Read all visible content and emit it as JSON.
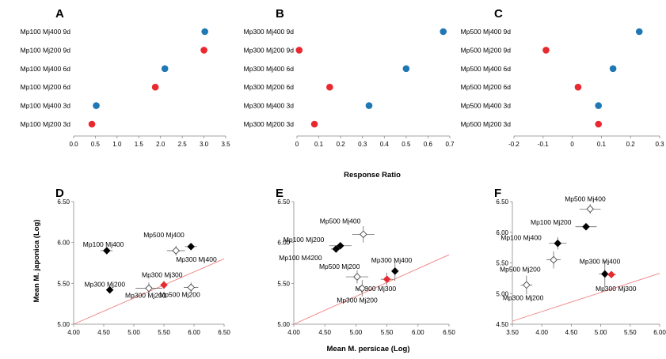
{
  "colors": {
    "red": "#e8292f",
    "blue": "#1f77b4",
    "line": "#f08080",
    "axis": "#888888"
  },
  "labels": {
    "top_x_title": "Response Ratio",
    "bottom_y_title": "Mean M. japonica (Log)",
    "bottom_x_title": "Mean M. persicae (Log)"
  },
  "chart_data": [
    {
      "panel": "A",
      "type": "scatter",
      "categories": [
        "Mp100 Mj400 9d",
        "Mp100 Mj200 9d",
        "Mp100 Mj400 6d",
        "Mp100 Mj200 6d",
        "Mp100 Mj400 3d",
        "Mp100 Mj200 3d"
      ],
      "values": [
        3.02,
        3.0,
        2.1,
        1.88,
        0.52,
        0.42
      ],
      "point_colors": [
        "blue",
        "red",
        "blue",
        "red",
        "blue",
        "red"
      ],
      "xlim": [
        0,
        3.5
      ],
      "xticks": [
        "0.0",
        "0.5",
        "1.0",
        "1.5",
        "2.0",
        "2.5",
        "3.0",
        "3.5"
      ]
    },
    {
      "panel": "B",
      "type": "scatter",
      "categories": [
        "Mp300 Mj400 9d",
        "Mp300 Mj200 9d",
        "Mp300 Mj400 6d",
        "Mp300 Mj200 6d",
        "Mp300 Mj400 3d",
        "Mp300 Mj200 3d"
      ],
      "values": [
        0.67,
        0.01,
        0.5,
        0.15,
        0.33,
        0.08
      ],
      "point_colors": [
        "blue",
        "red",
        "blue",
        "red",
        "blue",
        "red"
      ],
      "xlim": [
        0,
        0.7
      ],
      "xticks": [
        "0",
        "0.1",
        "0.2",
        "0.3",
        "0.4",
        "0.5",
        "0.6",
        "0.7"
      ]
    },
    {
      "panel": "C",
      "type": "scatter",
      "categories": [
        "Mp500 Mj400 9d",
        "Mp500 Mj200 9d",
        "Mp500 Mj400 6d",
        "Mp500 Mj200 6d",
        "Mp500 Mj400 3d",
        "Mp500 Mj200 3d"
      ],
      "values": [
        0.23,
        -0.09,
        0.14,
        0.02,
        0.09,
        0.09
      ],
      "point_colors": [
        "blue",
        "red",
        "blue",
        "red",
        "blue",
        "red"
      ],
      "xlim": [
        -0.2,
        0.3
      ],
      "xticks": [
        "-0.2",
        "-0.1",
        "0",
        "0.1",
        "0.2",
        "0.3"
      ]
    },
    {
      "panel": "D",
      "type": "scatter",
      "xlim": [
        4.0,
        6.5
      ],
      "ylim": [
        5.0,
        6.5
      ],
      "xticks": [
        "4.00",
        "4.50",
        "5.00",
        "5.50",
        "6.00",
        "6.50"
      ],
      "yticks": [
        "5.00",
        "5.50",
        "6.00",
        "6.50"
      ],
      "line": [
        [
          4.0,
          5.0
        ],
        [
          6.5,
          5.8
        ]
      ],
      "points": [
        {
          "label": "Mp100 Mj400",
          "x": 4.55,
          "y": 5.9,
          "xerr": 0.1,
          "yerr": 0.02,
          "style": "filled"
        },
        {
          "label": "Mp500 Mj400",
          "x": 5.95,
          "y": 5.95,
          "xerr": 0.1,
          "yerr": 0.03,
          "style": "filled"
        },
        {
          "label": "Mp300 Mj400",
          "x": 5.7,
          "y": 5.9,
          "xerr": 0.15,
          "yerr": 0.06,
          "style": "open"
        },
        {
          "label": "Mp300 Mj300",
          "x": 5.5,
          "y": 5.48,
          "xerr": 0.06,
          "yerr": 0.05,
          "style": "red"
        },
        {
          "label": "Mp300 Mj200",
          "x": 4.6,
          "y": 5.42,
          "xerr": 0.06,
          "yerr": 0.02,
          "style": "filled"
        },
        {
          "label": "Mp300 Mj200",
          "x": 5.25,
          "y": 5.44,
          "xerr": 0.22,
          "yerr": 0.07,
          "style": "open"
        },
        {
          "label": "Mp500 Mj200",
          "x": 5.95,
          "y": 5.45,
          "xerr": 0.12,
          "yerr": 0.06,
          "style": "open"
        }
      ]
    },
    {
      "panel": "E",
      "type": "scatter",
      "xlim": [
        4.0,
        6.5
      ],
      "ylim": [
        5.0,
        6.5
      ],
      "xticks": [
        "4.00",
        "4.50",
        "5.00",
        "5.50",
        "6.00",
        "6.50"
      ],
      "yticks": [
        "5.00",
        "5.50",
        "6.00",
        "6.50"
      ],
      "line": [
        [
          4.0,
          5.0
        ],
        [
          6.5,
          5.85
        ]
      ],
      "points": [
        {
          "label": "Mp500 Mj400",
          "x": 5.12,
          "y": 6.1,
          "xerr": 0.18,
          "yerr": 0.1,
          "style": "open"
        },
        {
          "label": "Mp100 Mj200",
          "x": 4.75,
          "y": 5.96,
          "xerr": 0.18,
          "yerr": 0.04,
          "style": "filled"
        },
        {
          "label": "Mp100 M4200",
          "x": 4.68,
          "y": 5.92,
          "xerr": 0.08,
          "yerr": 0.04,
          "style": "filled"
        },
        {
          "label": "Mp300 Mj400",
          "x": 5.63,
          "y": 5.65,
          "xerr": 0.05,
          "yerr": 0.12,
          "style": "filled"
        },
        {
          "label": "Mp300 Mj300",
          "x": 5.5,
          "y": 5.55,
          "xerr": 0.1,
          "yerr": 0.08,
          "style": "red"
        },
        {
          "label": "Mp500 Mj200",
          "x": 5.02,
          "y": 5.58,
          "xerr": 0.18,
          "yerr": 0.08,
          "style": "open"
        },
        {
          "label": "Mp300 Mj200",
          "x": 5.1,
          "y": 5.44,
          "xerr": 0.1,
          "yerr": 0.1,
          "style": "open"
        }
      ]
    },
    {
      "panel": "F",
      "type": "scatter",
      "xlim": [
        3.5,
        6.0
      ],
      "ylim": [
        4.5,
        6.5
      ],
      "xticks": [
        "3.50",
        "4.00",
        "4.50",
        "5.00",
        "5.50",
        "6.00"
      ],
      "yticks": [
        "4.50",
        "5.00",
        "5.50",
        "6.00",
        "6.50"
      ],
      "line": [
        [
          3.5,
          4.55
        ],
        [
          6.0,
          5.33
        ]
      ],
      "points": [
        {
          "label": "Mp500 Mj400",
          "x": 4.82,
          "y": 6.38,
          "xerr": 0.18,
          "yerr": 0.08,
          "style": "open"
        },
        {
          "label": "Mp100 Mj200",
          "x": 4.75,
          "y": 6.09,
          "xerr": 0.18,
          "yerr": 0.06,
          "style": "filled"
        },
        {
          "label": "Mp100 Mj400",
          "x": 4.27,
          "y": 5.82,
          "xerr": 0.15,
          "yerr": 0.1,
          "style": "filled"
        },
        {
          "label": "Mp500 Mj200",
          "x": 4.2,
          "y": 5.55,
          "xerr": 0.12,
          "yerr": 0.14,
          "style": "open"
        },
        {
          "label": "Mp300 Mj400",
          "x": 5.07,
          "y": 5.32,
          "xerr": 0.1,
          "yerr": 0.22,
          "style": "filled"
        },
        {
          "label": "Mp300 Mj300",
          "x": 5.18,
          "y": 5.31,
          "xerr": 0.08,
          "yerr": 0.04,
          "style": "red"
        },
        {
          "label": "Mp300 Mj200",
          "x": 3.74,
          "y": 5.14,
          "xerr": 0.1,
          "yerr": 0.15,
          "style": "open"
        }
      ]
    }
  ]
}
